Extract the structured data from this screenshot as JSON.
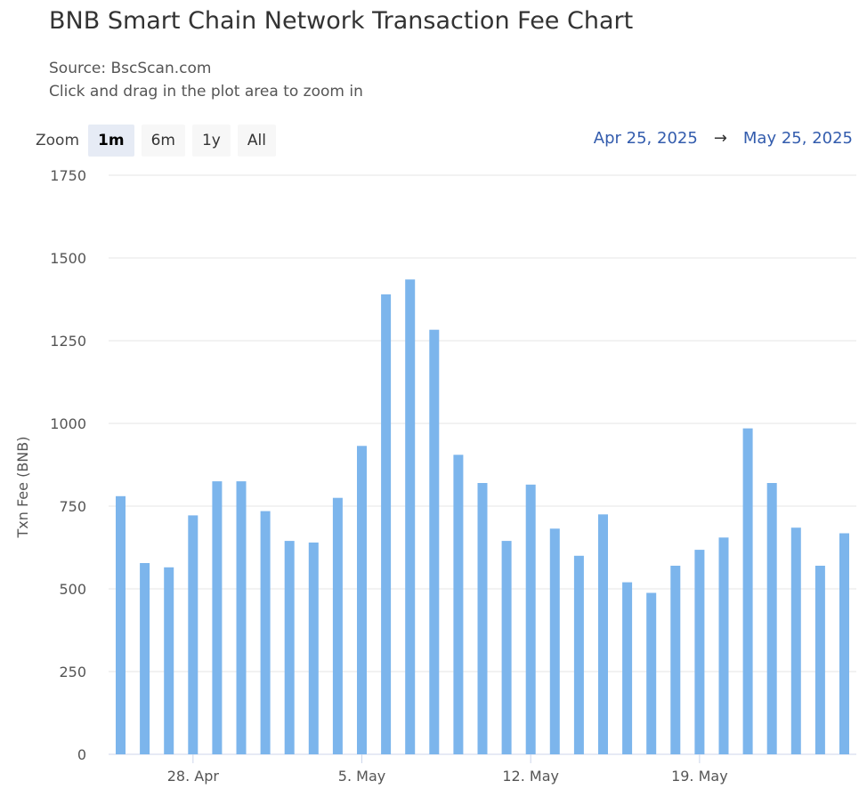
{
  "header": {
    "title": "BNB Smart Chain Network Transaction Fee Chart",
    "source": "Source: BscScan.com",
    "hint": "Click and drag in the plot area to zoom in"
  },
  "zoom": {
    "label": "Zoom",
    "buttons": [
      "1m",
      "6m",
      "1y",
      "All"
    ],
    "active": "1m"
  },
  "range": {
    "from": "Apr 25, 2025",
    "arrow": "→",
    "to": "May 25, 2025"
  },
  "colors": {
    "bar": "#7cb5ec",
    "grid": "#e6e6e6",
    "accent": "#335cad"
  },
  "chart_data": {
    "type": "bar",
    "ylabel": "Txn Fee (BNB)",
    "xlabel": "",
    "ylim": [
      0,
      1750
    ],
    "yticks": [
      0,
      250,
      500,
      750,
      1000,
      1250,
      1500,
      1750
    ],
    "x_start": "Apr 25, 2025",
    "x_end": "May 24, 2025",
    "xticks": [
      {
        "label": "28. Apr",
        "date": "2025-04-28"
      },
      {
        "label": "5. May",
        "date": "2025-05-05"
      },
      {
        "label": "12. May",
        "date": "2025-05-12"
      },
      {
        "label": "19. May",
        "date": "2025-05-19"
      }
    ],
    "grid": true,
    "legend": "none",
    "categories": [
      "2025-04-25",
      "2025-04-26",
      "2025-04-27",
      "2025-04-28",
      "2025-04-29",
      "2025-04-30",
      "2025-05-01",
      "2025-05-02",
      "2025-05-03",
      "2025-05-04",
      "2025-05-05",
      "2025-05-06",
      "2025-05-07",
      "2025-05-08",
      "2025-05-09",
      "2025-05-10",
      "2025-05-11",
      "2025-05-12",
      "2025-05-13",
      "2025-05-14",
      "2025-05-15",
      "2025-05-16",
      "2025-05-17",
      "2025-05-18",
      "2025-05-19",
      "2025-05-20",
      "2025-05-21",
      "2025-05-22",
      "2025-05-23",
      "2025-05-24",
      "2025-05-25"
    ],
    "values": [
      780,
      578,
      565,
      722,
      825,
      825,
      735,
      645,
      640,
      775,
      932,
      1390,
      1435,
      1283,
      905,
      820,
      645,
      815,
      682,
      600,
      725,
      520,
      488,
      570,
      618,
      655,
      985,
      820,
      685,
      570,
      668
    ]
  }
}
